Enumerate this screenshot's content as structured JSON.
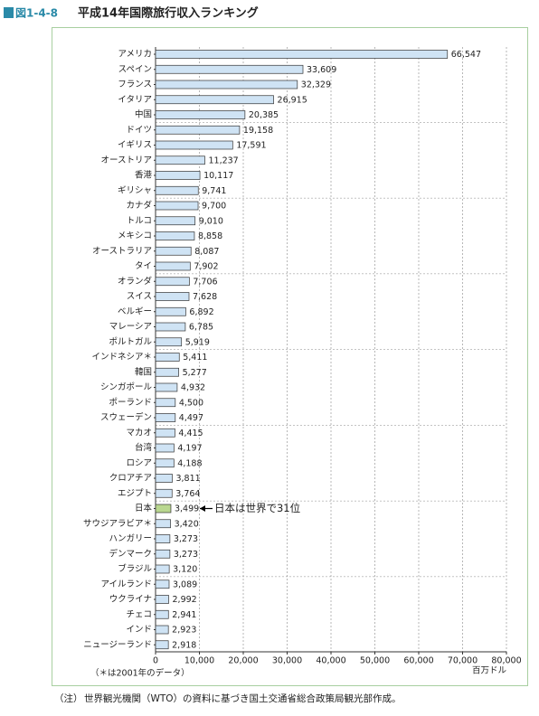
{
  "chart_data": {
    "type": "hbar",
    "figure_label": "図1-4-8",
    "title": "平成14年国際旅行収入ランキング",
    "categories": [
      "アメリカ",
      "スペイン",
      "フランス",
      "イタリア",
      "中国",
      "ドイツ",
      "イギリス",
      "オーストリア",
      "香港",
      "ギリシャ",
      "カナダ",
      "トルコ",
      "メキシコ",
      "オーストラリア",
      "タイ",
      "オランダ",
      "スイス",
      "ベルギー",
      "マレーシア",
      "ポルトガル",
      "インドネシア＊",
      "韓国",
      "シンガポール",
      "ポーランド",
      "スウェーデン",
      "マカオ",
      "台湾",
      "ロシア",
      "クロアチア",
      "エジプト",
      "日本",
      "サウジアラビア＊",
      "ハンガリー",
      "デンマーク",
      "ブラジル",
      "アイルランド",
      "ウクライナ",
      "チェコ",
      "インド",
      "ニュージーランド"
    ],
    "values": [
      66547,
      33609,
      32329,
      26915,
      20385,
      19158,
      17591,
      11237,
      10117,
      9741,
      9700,
      9010,
      8858,
      8087,
      7902,
      7706,
      7628,
      6892,
      6785,
      5919,
      5411,
      5277,
      4932,
      4500,
      4497,
      4415,
      4197,
      4188,
      3811,
      3764,
      3499,
      3420,
      3273,
      3273,
      3120,
      3089,
      2992,
      2941,
      2923,
      2918
    ],
    "value_labels": [
      "66,547",
      "33,609",
      "32,329",
      "26,915",
      "20,385",
      "19,158",
      "17,591",
      "11,237",
      "10,117",
      "9,741",
      "9,700",
      "9,010",
      "8,858",
      "8,087",
      "7,902",
      "7,706",
      "7,628",
      "6,892",
      "6,785",
      "5,919",
      "5,411",
      "5,277",
      "4,932",
      "4,500",
      "4,497",
      "4,415",
      "4,197",
      "4,188",
      "3,811",
      "3,764",
      "3,499",
      "3,420",
      "3,273",
      "3,273",
      "3,120",
      "3,089",
      "2,992",
      "2,941",
      "2,923",
      "2,918"
    ],
    "colors": [
      "#cfe3f4",
      "#cfe3f4",
      "#cfe3f4",
      "#cfe3f4",
      "#cfe3f4",
      "#cfe3f4",
      "#cfe3f4",
      "#cfe3f4",
      "#cfe3f4",
      "#cfe3f4",
      "#cfe3f4",
      "#cfe3f4",
      "#cfe3f4",
      "#cfe3f4",
      "#cfe3f4",
      "#cfe3f4",
      "#cfe3f4",
      "#cfe3f4",
      "#cfe3f4",
      "#cfe3f4",
      "#cfe3f4",
      "#cfe3f4",
      "#cfe3f4",
      "#cfe3f4",
      "#cfe3f4",
      "#cfe3f4",
      "#cfe3f4",
      "#cfe3f4",
      "#cfe3f4",
      "#cfe3f4",
      "#b9d78f",
      "#cfe3f4",
      "#cfe3f4",
      "#cfe3f4",
      "#cfe3f4",
      "#cfe3f4",
      "#cfe3f4",
      "#cfe3f4",
      "#cfe3f4",
      "#cfe3f4"
    ],
    "xlim": [
      0,
      80000
    ],
    "xticks": [
      0,
      {
        "value": 10000,
        "label": "10,000"
      },
      {
        "value": 20000,
        "label": "20,000"
      },
      {
        "value": 30000,
        "label": "30,000"
      },
      {
        "value": 40000,
        "label": "40,000"
      },
      {
        "value": 50000,
        "label": "50,000"
      },
      {
        "value": 60000,
        "label": "60,000"
      },
      {
        "value": 70000,
        "label": "70,000"
      },
      {
        "value": 80000,
        "label": "80,000"
      }
    ],
    "xlabel": "百万ドル",
    "grid": true,
    "annotation": "日本は世界で31位",
    "note": "（＊は2001年のデータ）",
    "source_label": "（注）",
    "source": "世界観光機関（WTO）の資料に基づき国土交通省総合政策局観光部作成。"
  }
}
